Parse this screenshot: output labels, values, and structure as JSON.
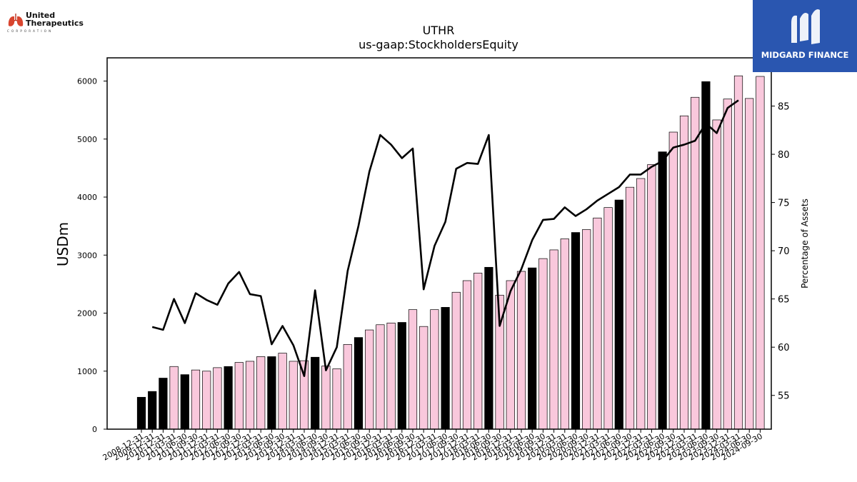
{
  "branding": {
    "company_logo_line1": "United",
    "company_logo_line2": "Therapeutics",
    "company_logo_line3": "CORPORATION",
    "publisher_name": "MIDGARD FINANCE",
    "publisher_color": "#2a56b0"
  },
  "chart_data": {
    "type": "bar",
    "title": "UTHR",
    "subtitle": "us-gaap:StockholdersEquity",
    "ylabel": "USDm",
    "y2label": "Percentage of Assets",
    "ylim": [
      0,
      6400
    ],
    "y2lim": [
      51.5,
      90
    ],
    "yticks": [
      0,
      1000,
      2000,
      3000,
      4000,
      5000,
      6000
    ],
    "y2ticks": [
      55,
      60,
      65,
      70,
      75,
      80,
      85
    ],
    "bar_colors": {
      "annual": "#000000",
      "quarterly": "#f9c8dc"
    },
    "line_color": "#000000",
    "categories": [
      "2008-12-31",
      "2009-12-31",
      "2010-12-31",
      "2011-03-31",
      "2011-06-30",
      "2011-09-30",
      "2011-12-31",
      "2012-03-31",
      "2012-06-30",
      "2012-09-30",
      "2012-12-31",
      "2013-03-31",
      "2013-06-30",
      "2013-09-30",
      "2013-12-31",
      "2014-03-31",
      "2014-06-30",
      "2014-09-30",
      "2014-12-31",
      "2015-03-31",
      "2015-06-30",
      "2015-09-30",
      "2015-12-31",
      "2016-03-31",
      "2016-06-30",
      "2016-09-30",
      "2016-12-31",
      "2017-03-31",
      "2017-06-30",
      "2017-09-30",
      "2017-12-31",
      "2018-03-31",
      "2018-06-30",
      "2018-09-30",
      "2018-12-31",
      "2019-03-31",
      "2019-06-30",
      "2019-09-30",
      "2019-12-31",
      "2020-03-31",
      "2020-06-30",
      "2020-09-30",
      "2020-12-31",
      "2021-03-31",
      "2021-06-30",
      "2021-09-30",
      "2021-12-31",
      "2022-03-31",
      "2022-06-30",
      "2022-09-30",
      "2022-12-31",
      "2023-03-31",
      "2023-06-30",
      "2023-09-30",
      "2023-12-31",
      "2024-03-31",
      "2024-06-30",
      "2024-09-30"
    ],
    "annual_flags": [
      1,
      1,
      1,
      0,
      1,
      0,
      0,
      0,
      1,
      0,
      0,
      0,
      1,
      0,
      0,
      0,
      1,
      0,
      0,
      0,
      1,
      0,
      0,
      0,
      1,
      0,
      0,
      0,
      1,
      0,
      0,
      0,
      1,
      0,
      0,
      0,
      1,
      0,
      0,
      0,
      1,
      0,
      0,
      0,
      1,
      0,
      0,
      0,
      1,
      0,
      0,
      0,
      1,
      0,
      0,
      0,
      0,
      0
    ],
    "series": [
      {
        "name": "StockholdersEquity",
        "axis": "left",
        "values": [
          550,
          650,
          880,
          1080,
          940,
          1020,
          1000,
          1060,
          1080,
          1150,
          1170,
          1250,
          1250,
          1310,
          1170,
          1180,
          1240,
          1090,
          1040,
          1460,
          1580,
          1710,
          1800,
          1830,
          1840,
          2060,
          1770,
          2060,
          2100,
          2360,
          2560,
          2690,
          2790,
          2310,
          2560,
          2720,
          2780,
          2940,
          3090,
          3280,
          3390,
          3440,
          3640,
          3820,
          3950,
          4170,
          4320,
          4560,
          4780,
          5120,
          5400,
          5720,
          5990,
          5330,
          5690,
          6090,
          5700,
          6080
        ]
      },
      {
        "name": "Percentage of Assets",
        "axis": "right",
        "values": [
          null,
          62.1,
          61.8,
          65.0,
          62.5,
          65.6,
          64.9,
          64.4,
          66.6,
          67.8,
          65.5,
          65.3,
          60.3,
          62.2,
          60.2,
          57.0,
          65.9,
          57.6,
          60.0,
          67.9,
          72.6,
          78.2,
          82.0,
          81.0,
          79.6,
          80.6,
          66.0,
          70.5,
          73.0,
          78.5,
          79.1,
          79.0,
          82.0,
          62.2,
          65.8,
          68.1,
          71.1,
          73.2,
          73.3,
          74.5,
          73.6,
          74.3,
          75.2,
          75.9,
          76.6,
          77.9,
          77.9,
          78.7,
          79.3,
          80.7,
          81.0,
          81.4,
          83.2,
          82.2,
          84.8,
          85.6,
          null,
          null
        ]
      }
    ],
    "legend": "none",
    "grid": false
  }
}
